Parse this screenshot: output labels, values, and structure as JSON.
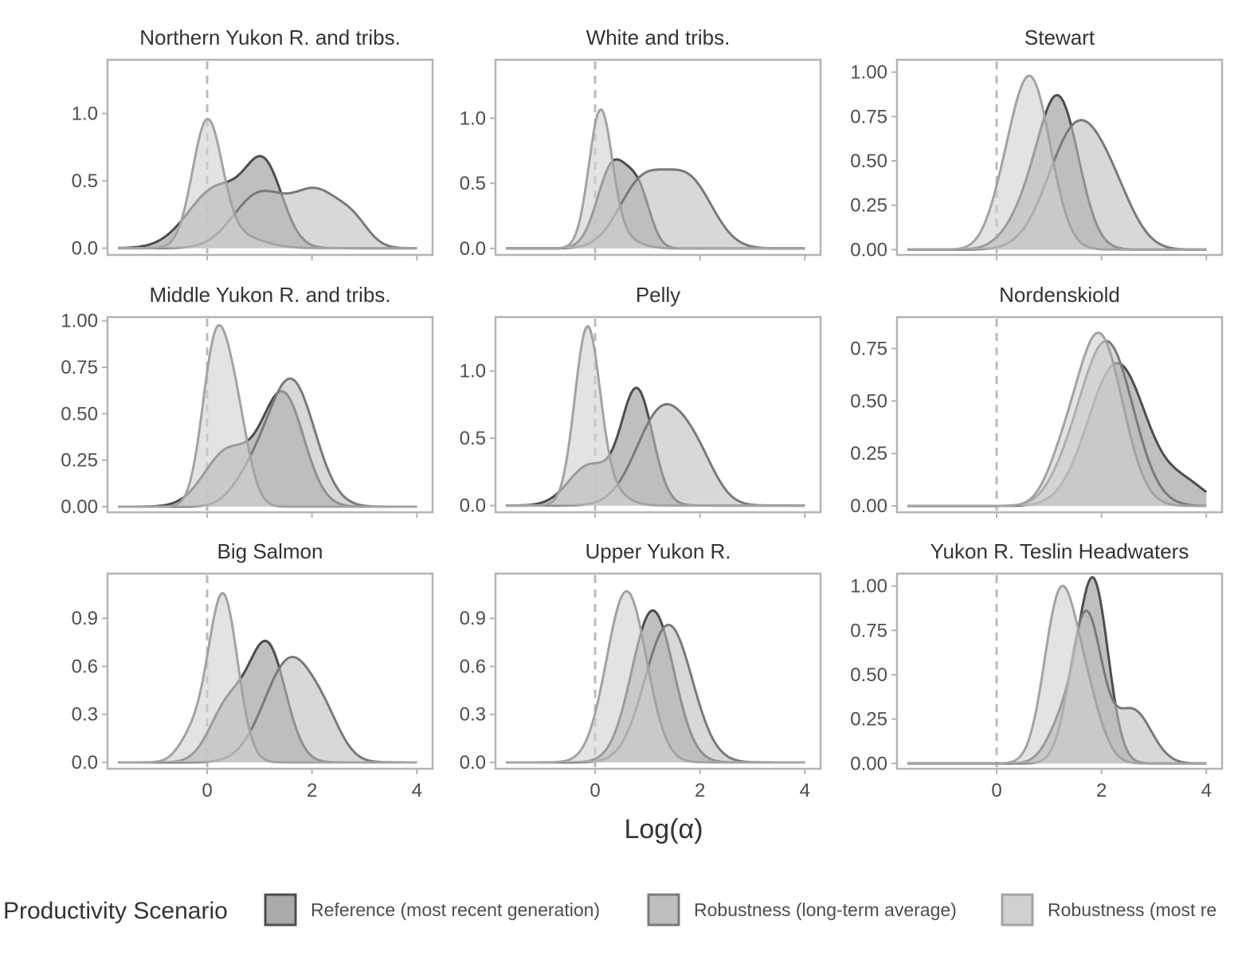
{
  "chart_data": {
    "type": "area",
    "xlabel": "Log(α)",
    "x_ticks": [
      0,
      2,
      4
    ],
    "xlim": [
      -1.9,
      4.3
    ],
    "legend": {
      "title": "Productivity Scenario",
      "position": "bottom",
      "entries": [
        "Reference (most recent generation)",
        "Robustness (long-term average)",
        "Robustness (most re"
      ]
    },
    "series_colors": [
      {
        "fill": "#aaaaaa",
        "line": "#4d4d4d",
        "opacity": 0.75
      },
      {
        "fill": "#bebebe",
        "line": "#7a7a7a",
        "opacity": 0.6
      },
      {
        "fill": "#d0d0d0",
        "line": "#a3a3a3",
        "opacity": 0.6
      }
    ],
    "reference_line": {
      "x": 0,
      "color": "#bbbbbb"
    },
    "panels": [
      {
        "title": "Northern Yukon R. and tribs.",
        "ylim": [
          -0.05,
          1.4
        ],
        "y_ticks": [
          "0.0",
          "0.5",
          "1.0"
        ],
        "y_tick_values": [
          0,
          0.5,
          1.0
        ],
        "series": [
          {
            "components": [
              [
                0.2,
                0.55,
                0.45
              ],
              [
                1.1,
                0.35,
                0.55
              ]
            ]
          },
          {
            "components": [
              [
                1.0,
                0.5,
                0.4
              ],
              [
                2.1,
                0.45,
                0.4
              ],
              [
                2.8,
                0.3,
                0.15
              ]
            ]
          },
          {
            "components": [
              [
                0.0,
                0.28,
                0.9
              ],
              [
                0.5,
                0.5,
                0.1
              ]
            ]
          }
        ]
      },
      {
        "title": "White and tribs.",
        "ylim": [
          -0.05,
          1.45
        ],
        "y_ticks": [
          "0.0",
          "0.5",
          "1.0"
        ],
        "y_tick_values": [
          0,
          0.5,
          1.0
        ],
        "series": [
          {
            "components": [
              [
                0.35,
                0.3,
                0.65
              ],
              [
                0.85,
                0.22,
                0.35
              ]
            ]
          },
          {
            "components": [
              [
                0.9,
                0.45,
                0.5
              ],
              [
                1.8,
                0.45,
                0.5
              ]
            ]
          },
          {
            "components": [
              [
                0.1,
                0.22,
                1.0
              ],
              [
                0.4,
                0.35,
                0.1
              ]
            ]
          }
        ]
      },
      {
        "title": "Stewart",
        "ylim": [
          -0.03,
          1.07
        ],
        "y_ticks": [
          "0.00",
          "0.25",
          "0.50",
          "0.75",
          "1.00"
        ],
        "y_tick_values": [
          0,
          0.25,
          0.5,
          0.75,
          1.0
        ],
        "series": [
          {
            "components": [
              [
                1.2,
                0.38,
                0.8
              ],
              [
                0.6,
                0.4,
                0.2
              ]
            ]
          },
          {
            "components": [
              [
                1.55,
                0.55,
                0.7
              ],
              [
                2.3,
                0.4,
                0.15
              ]
            ]
          },
          {
            "components": [
              [
                0.65,
                0.38,
                0.95
              ],
              [
                0.1,
                0.3,
                0.15
              ]
            ]
          }
        ]
      },
      {
        "title": "Middle Yukon R. and tribs.",
        "ylim": [
          -0.03,
          1.02
        ],
        "y_ticks": [
          "0.00",
          "0.25",
          "0.50",
          "0.75",
          "1.00"
        ],
        "y_tick_values": [
          0,
          0.25,
          0.5,
          0.75,
          1.0
        ],
        "series": [
          {
            "components": [
              [
                1.45,
                0.4,
                0.6
              ],
              [
                0.4,
                0.45,
                0.3
              ]
            ]
          },
          {
            "components": [
              [
                1.6,
                0.45,
                0.68
              ],
              [
                0.8,
                0.35,
                0.12
              ]
            ]
          },
          {
            "components": [
              [
                0.15,
                0.25,
                0.82
              ],
              [
                0.55,
                0.25,
                0.45
              ]
            ]
          }
        ]
      },
      {
        "title": "Pelly",
        "ylim": [
          -0.05,
          1.4
        ],
        "y_ticks": [
          "0.0",
          "0.5",
          "1.0"
        ],
        "y_tick_values": [
          0,
          0.5,
          1.0
        ],
        "series": [
          {
            "components": [
              [
                0.8,
                0.3,
                0.85
              ],
              [
                -0.1,
                0.4,
                0.3
              ]
            ]
          },
          {
            "components": [
              [
                1.3,
                0.5,
                0.72
              ],
              [
                2.0,
                0.35,
                0.2
              ]
            ]
          },
          {
            "components": [
              [
                -0.15,
                0.24,
                1.3
              ],
              [
                0.3,
                0.3,
                0.1
              ]
            ]
          }
        ]
      },
      {
        "title": "Nordenskiold",
        "ylim": [
          -0.03,
          0.9
        ],
        "y_ticks": [
          "0.00",
          "0.25",
          "0.50",
          "0.75"
        ],
        "y_tick_values": [
          0,
          0.25,
          0.5,
          0.75
        ],
        "series": [
          {
            "components": [
              [
                2.3,
                0.55,
                0.68
              ],
              [
                3.6,
                0.4,
                0.1
              ]
            ]
          },
          {
            "components": [
              [
                2.1,
                0.5,
                0.78
              ],
              [
                1.3,
                0.35,
                0.08
              ]
            ]
          },
          {
            "components": [
              [
                1.95,
                0.45,
                0.82
              ],
              [
                1.2,
                0.3,
                0.12
              ]
            ]
          }
        ]
      },
      {
        "title": "Big Salmon",
        "ylim": [
          -0.04,
          1.18
        ],
        "y_ticks": [
          "0.0",
          "0.3",
          "0.6",
          "0.9"
        ],
        "y_tick_values": [
          0,
          0.3,
          0.6,
          0.9
        ],
        "series": [
          {
            "components": [
              [
                1.15,
                0.35,
                0.72
              ],
              [
                0.4,
                0.35,
                0.35
              ]
            ]
          },
          {
            "components": [
              [
                1.6,
                0.5,
                0.65
              ],
              [
                2.3,
                0.3,
                0.12
              ]
            ]
          },
          {
            "components": [
              [
                0.3,
                0.28,
                1.05
              ],
              [
                -0.3,
                0.25,
                0.15
              ]
            ]
          }
        ]
      },
      {
        "title": "Upper Yukon R.",
        "ylim": [
          -0.04,
          1.18
        ],
        "y_ticks": [
          "0.0",
          "0.3",
          "0.6",
          "0.9"
        ],
        "y_tick_values": [
          0,
          0.3,
          0.6,
          0.9
        ],
        "series": [
          {
            "components": [
              [
                1.1,
                0.4,
                0.95
              ]
            ]
          },
          {
            "components": [
              [
                1.4,
                0.45,
                0.86
              ]
            ]
          },
          {
            "components": [
              [
                0.6,
                0.38,
                1.07
              ]
            ]
          }
        ]
      },
      {
        "title": "Yukon R. Teslin Headwaters",
        "ylim": [
          -0.03,
          1.07
        ],
        "y_ticks": [
          "0.00",
          "0.25",
          "0.50",
          "0.75",
          "1.00"
        ],
        "y_tick_values": [
          0,
          0.25,
          0.5,
          0.75,
          1.0
        ],
        "series": [
          {
            "components": [
              [
                1.85,
                0.28,
                1.0
              ],
              [
                1.3,
                0.3,
                0.25
              ]
            ]
          },
          {
            "components": [
              [
                1.7,
                0.3,
                0.85
              ],
              [
                2.6,
                0.35,
                0.3
              ]
            ]
          },
          {
            "components": [
              [
                1.2,
                0.3,
                0.9
              ],
              [
                1.7,
                0.3,
                0.35
              ]
            ]
          }
        ]
      }
    ]
  }
}
